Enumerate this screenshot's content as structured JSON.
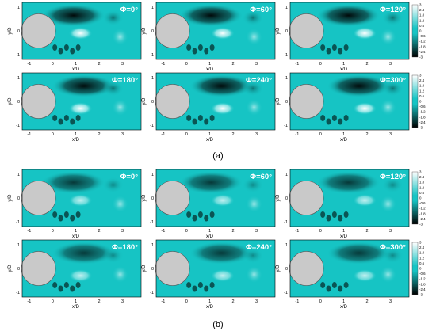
{
  "figure": {
    "caption_a": "(a)",
    "caption_b": "(b)"
  },
  "colors": {
    "background_field": "#16c4c4",
    "cylinder": "#c9c9c9",
    "text_white": "#ffffff"
  },
  "chart_data": [
    {
      "type": "heatmap",
      "group": "a",
      "label": "Φ=0°",
      "xlabel": "x/D",
      "ylabel": "y/D",
      "xticks": [
        "-1",
        "0",
        "1",
        "2",
        "3"
      ],
      "yticks": [
        "1",
        "0",
        "-1"
      ],
      "xlim": [
        -1.3,
        3.8
      ],
      "ylim": [
        -1.2,
        1.2
      ]
    },
    {
      "type": "heatmap",
      "group": "a",
      "label": "Φ=60°",
      "xlabel": "x/D",
      "ylabel": "y/D",
      "xticks": [
        "-1",
        "0",
        "1",
        "2",
        "3"
      ],
      "yticks": [
        "1",
        "0",
        "-1"
      ],
      "xlim": [
        -1.3,
        3.8
      ],
      "ylim": [
        -1.2,
        1.2
      ]
    },
    {
      "type": "heatmap",
      "group": "a",
      "label": "Φ=120°",
      "xlabel": "x/D",
      "ylabel": "y/D",
      "xticks": [
        "-1",
        "0",
        "1",
        "2",
        "3"
      ],
      "yticks": [
        "1",
        "0",
        "-1"
      ],
      "xlim": [
        -1.3,
        3.8
      ],
      "ylim": [
        -1.2,
        1.2
      ],
      "colorbar": [
        "3",
        "2.4",
        "1.8",
        "1.2",
        "0.6",
        "0",
        "-0.6",
        "-1.2",
        "-1.8",
        "-2.4",
        "-3"
      ]
    },
    {
      "type": "heatmap",
      "group": "a",
      "label": "Φ=180°",
      "xlabel": "x/D",
      "ylabel": "y/D",
      "xticks": [
        "-1",
        "0",
        "1",
        "2",
        "3"
      ],
      "yticks": [
        "1",
        "0",
        "-1"
      ],
      "xlim": [
        -1.3,
        3.8
      ],
      "ylim": [
        -1.2,
        1.2
      ]
    },
    {
      "type": "heatmap",
      "group": "a",
      "label": "Φ=240°",
      "xlabel": "x/D",
      "ylabel": "y/D",
      "xticks": [
        "-1",
        "0",
        "1",
        "2",
        "3"
      ],
      "yticks": [
        "1",
        "0",
        "-1"
      ],
      "xlim": [
        -1.3,
        3.8
      ],
      "ylim": [
        -1.2,
        1.2
      ]
    },
    {
      "type": "heatmap",
      "group": "a",
      "label": "Φ=300°",
      "xlabel": "x/D",
      "ylabel": "y/D",
      "xticks": [
        "-1",
        "0",
        "1",
        "2",
        "3"
      ],
      "yticks": [
        "1",
        "0",
        "-1"
      ],
      "xlim": [
        -1.3,
        3.8
      ],
      "ylim": [
        -1.2,
        1.2
      ],
      "colorbar": [
        "3",
        "2.4",
        "1.8",
        "1.2",
        "0.6",
        "0",
        "-0.6",
        "-1.2",
        "-1.8",
        "-2.4",
        "-3"
      ]
    },
    {
      "type": "heatmap",
      "group": "b",
      "label": "Φ=0°",
      "xlabel": "x/D",
      "ylabel": "y/D",
      "xticks": [
        "-1",
        "0",
        "1",
        "2",
        "3"
      ],
      "yticks": [
        "1",
        "0",
        "-1"
      ],
      "xlim": [
        -1.3,
        3.8
      ],
      "ylim": [
        -1.2,
        1.2
      ]
    },
    {
      "type": "heatmap",
      "group": "b",
      "label": "Φ=60°",
      "xlabel": "x/D",
      "ylabel": "y/D",
      "xticks": [
        "-1",
        "0",
        "1",
        "2",
        "3"
      ],
      "yticks": [
        "1",
        "0",
        "-1"
      ],
      "xlim": [
        -1.3,
        3.8
      ],
      "ylim": [
        -1.2,
        1.2
      ]
    },
    {
      "type": "heatmap",
      "group": "b",
      "label": "Φ=120°",
      "xlabel": "x/D",
      "ylabel": "y/D",
      "xticks": [
        "-1",
        "0",
        "1",
        "2",
        "3"
      ],
      "yticks": [
        "1",
        "0",
        "-1"
      ],
      "xlim": [
        -1.3,
        3.8
      ],
      "ylim": [
        -1.2,
        1.2
      ],
      "colorbar": [
        "3",
        "2.4",
        "1.8",
        "1.2",
        "0.6",
        "0",
        "-0.6",
        "-1.2",
        "-1.8",
        "-2.4",
        "-3"
      ]
    },
    {
      "type": "heatmap",
      "group": "b",
      "label": "Φ=180°",
      "xlabel": "x/D",
      "ylabel": "y/D",
      "xticks": [
        "-1",
        "0",
        "1",
        "2",
        "3"
      ],
      "yticks": [
        "1",
        "0",
        "-1"
      ],
      "xlim": [
        -1.3,
        3.8
      ],
      "ylim": [
        -1.2,
        1.2
      ]
    },
    {
      "type": "heatmap",
      "group": "b",
      "label": "Φ=240°",
      "xlabel": "x/D",
      "ylabel": "y/D",
      "xticks": [
        "-1",
        "0",
        "1",
        "2",
        "3"
      ],
      "yticks": [
        "1",
        "0",
        "-1"
      ],
      "xlim": [
        -1.3,
        3.8
      ],
      "ylim": [
        -1.2,
        1.2
      ]
    },
    {
      "type": "heatmap",
      "group": "b",
      "label": "Φ=300°",
      "xlabel": "x/D",
      "ylabel": "y/D",
      "xticks": [
        "-1",
        "0",
        "1",
        "2",
        "3"
      ],
      "yticks": [
        "1",
        "0",
        "-1"
      ],
      "xlim": [
        -1.3,
        3.8
      ],
      "ylim": [
        -1.2,
        1.2
      ],
      "colorbar": [
        "3",
        "2.4",
        "1.8",
        "1.2",
        "0.6",
        "0",
        "-0.6",
        "-1.2",
        "-1.8",
        "-2.4",
        "-3"
      ]
    }
  ]
}
